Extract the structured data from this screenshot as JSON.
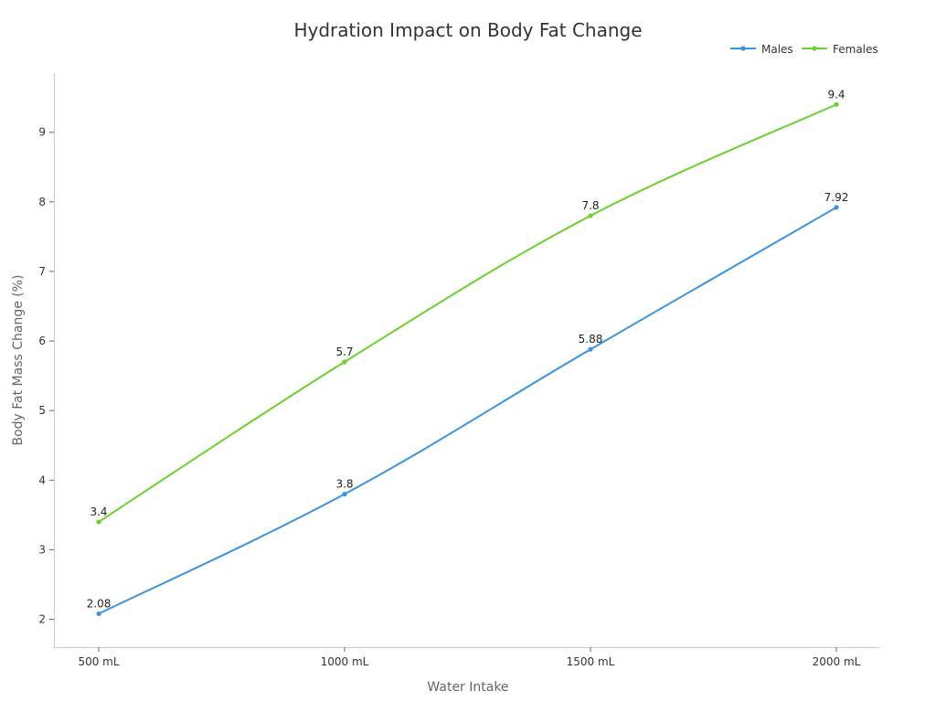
{
  "chart_data": {
    "type": "line",
    "title": "Hydration Impact on Body Fat Change",
    "xlabel": "Water Intake",
    "ylabel": "Body Fat Mass Change (%)",
    "categories": [
      "500 mL",
      "1000 mL",
      "1500 mL",
      "2000 mL"
    ],
    "ylim": [
      1.6,
      9.85
    ],
    "yticks": [
      2,
      3,
      4,
      5,
      6,
      7,
      8,
      9
    ],
    "grid": false,
    "legend_position": "top-right",
    "series": [
      {
        "name": "Males",
        "color": "#3a93dd",
        "values": [
          2.08,
          3.8,
          5.88,
          7.92
        ],
        "labels": [
          "2.08",
          "3.8",
          "5.88",
          "7.92"
        ]
      },
      {
        "name": "Females",
        "color": "#6bd12f",
        "values": [
          3.4,
          5.7,
          7.8,
          9.4
        ],
        "labels": [
          "3.4",
          "5.7",
          "7.8",
          "9.4"
        ]
      }
    ]
  }
}
